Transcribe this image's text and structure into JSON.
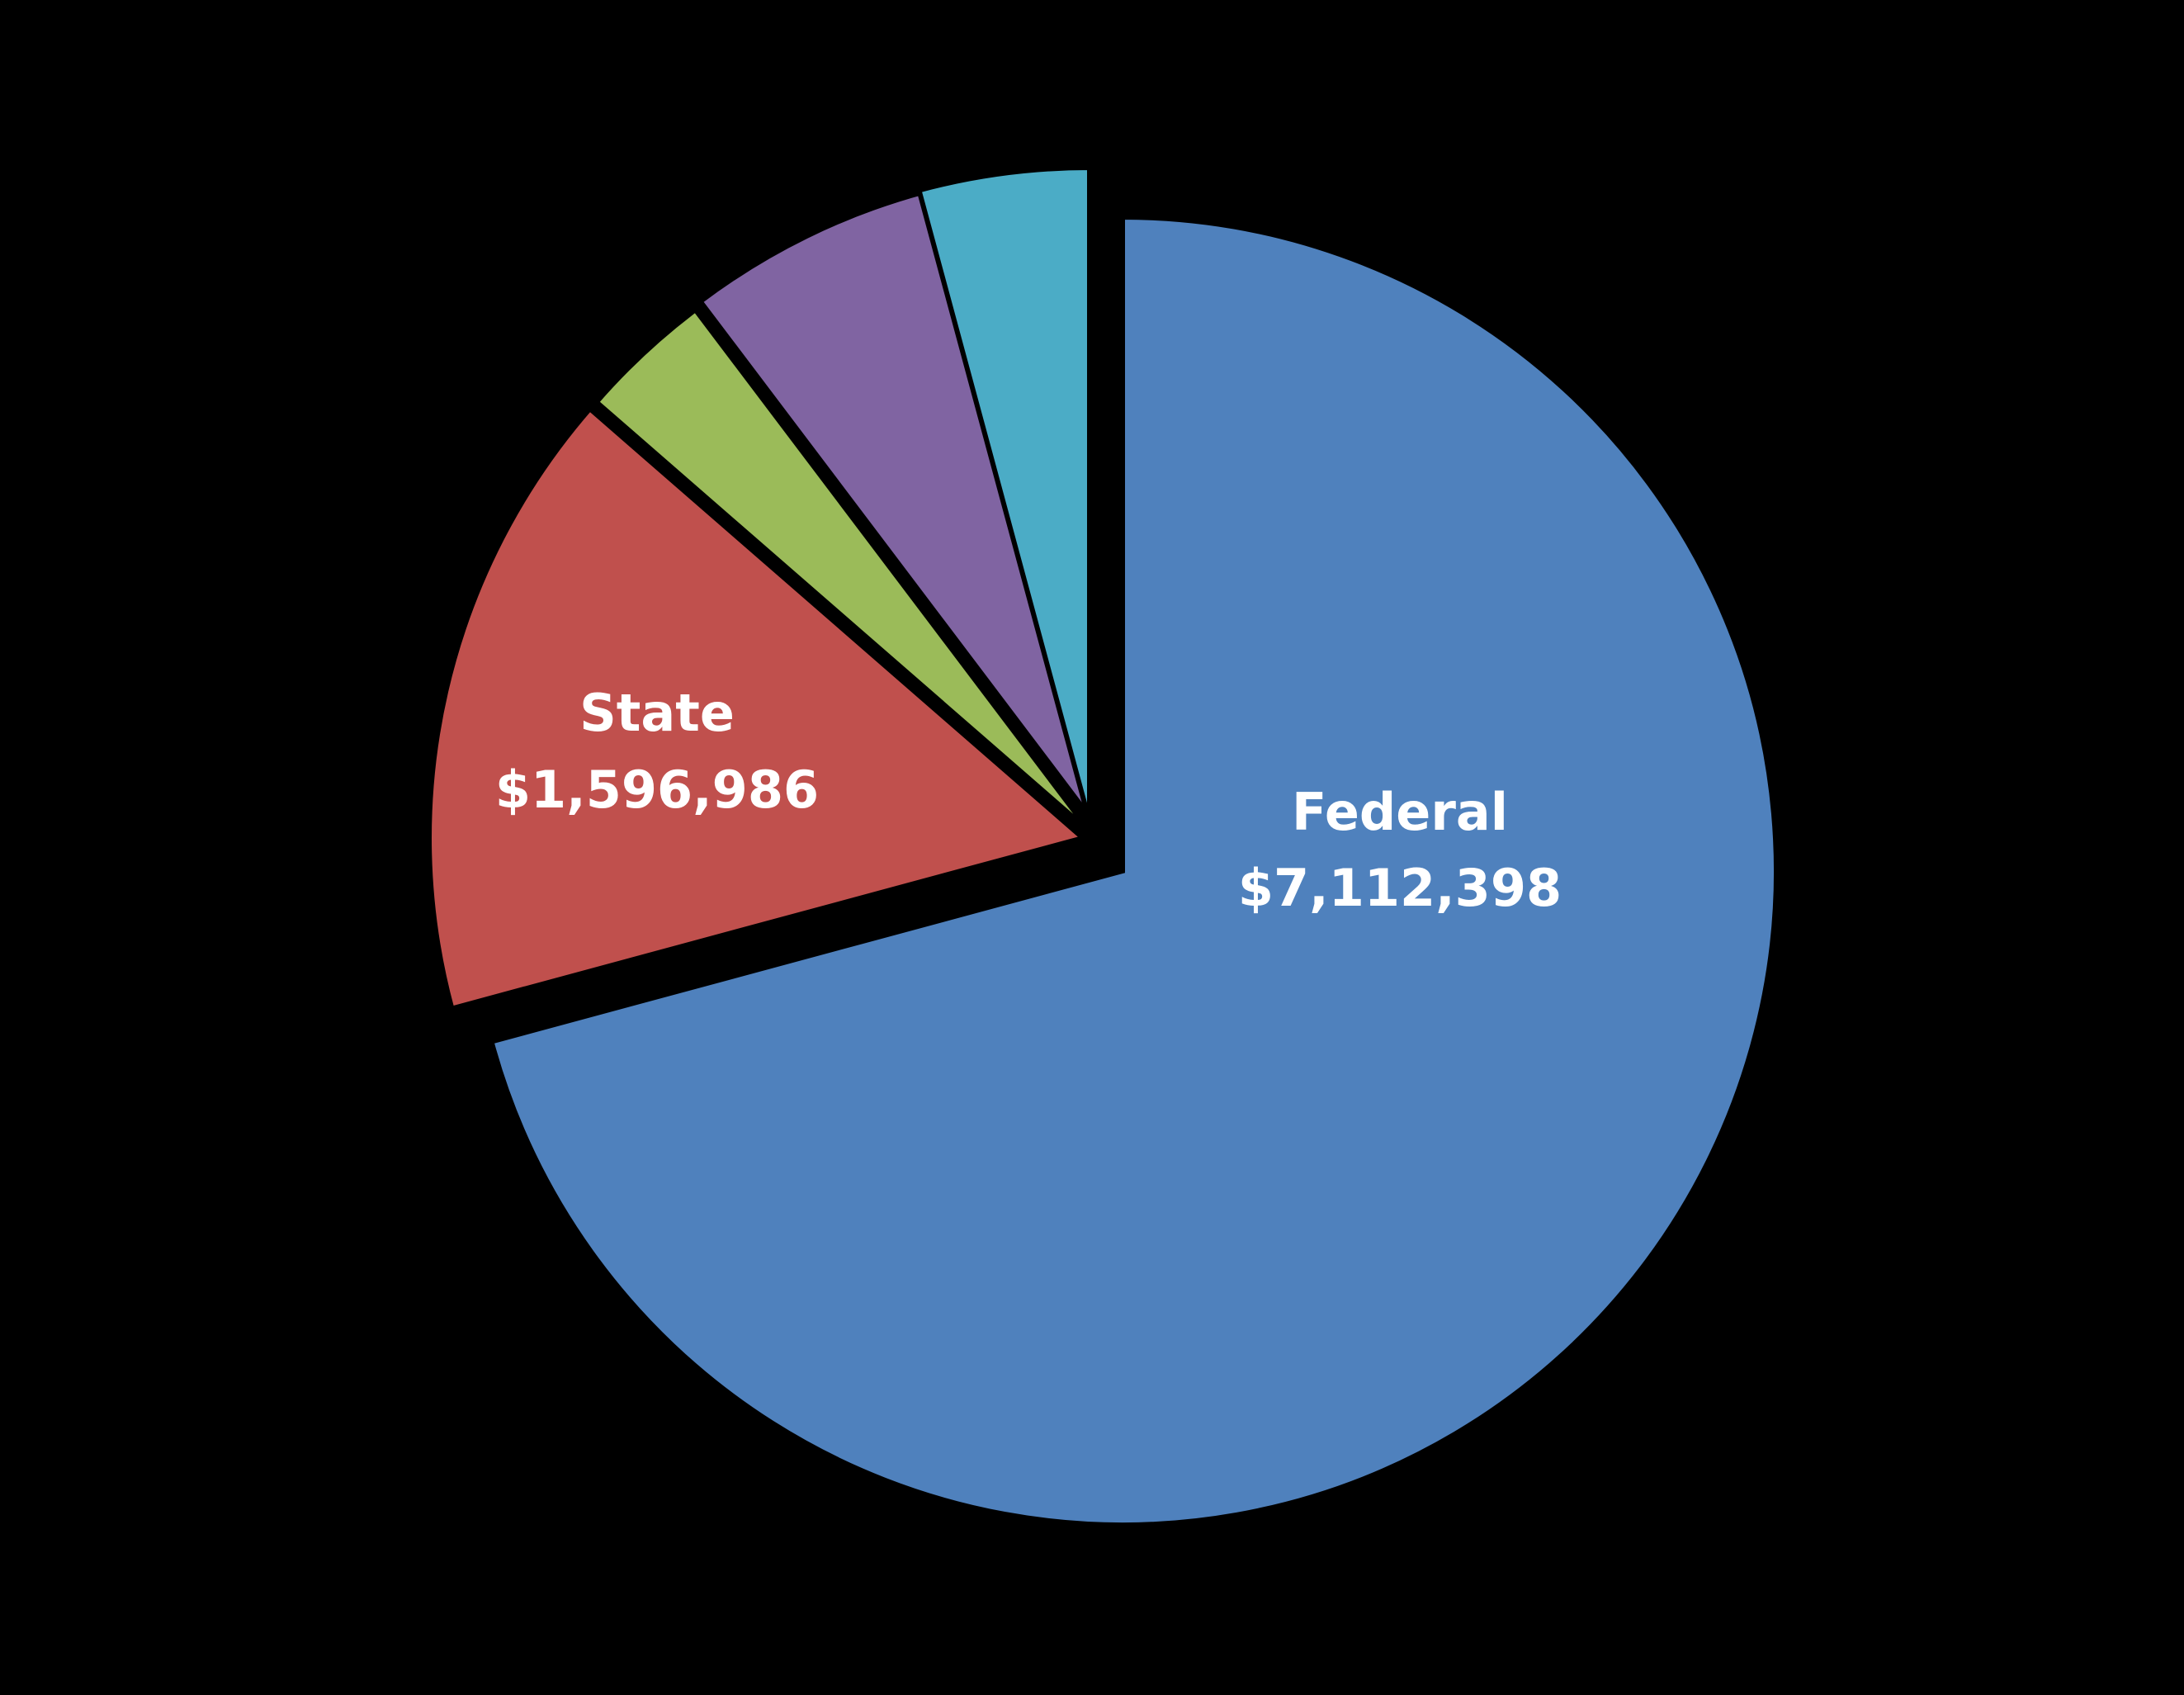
{
  "background": "#000000",
  "chart_data": {
    "type": "pie",
    "title": "",
    "start_angle_deg": 0,
    "direction": "clockwise",
    "exploded": true,
    "center": [
      1360,
      1055
    ],
    "radius": 792,
    "slices": [
      {
        "name": "Federal",
        "value": 7112398,
        "value_label": "$7,112,398",
        "color": "#4F81BD",
        "labeled": true,
        "est_share": 0.708,
        "explode": [
          0,
          0
        ],
        "label_pos": [
          1696,
          990
        ]
      },
      {
        "name": "State",
        "value": 1596986,
        "value_label": "$1,596,986",
        "color": "#C0504D",
        "labeled": true,
        "est_share": 0.156,
        "explode": [
          -48,
          -40
        ],
        "label_pos": [
          796,
          885
        ]
      },
      {
        "name": "",
        "value": null,
        "value_label": "",
        "color": "#9BBB59",
        "labeled": false,
        "est_share": 0.033,
        "explode": [
          -40,
          -48
        ]
      },
      {
        "name": "",
        "value": null,
        "value_label": "",
        "color": "#8064A2",
        "labeled": false,
        "est_share": 0.061,
        "explode": [
          -34,
          -58
        ]
      },
      {
        "name": "",
        "value": null,
        "value_label": "",
        "color": "#4BACC6",
        "labeled": false,
        "est_share": 0.042,
        "explode": [
          -40,
          -60
        ]
      }
    ],
    "legend": null,
    "slice_separator_color": "#000000"
  },
  "labels": {
    "federal_name": "Federal",
    "federal_value": "$7,112,398",
    "state_name": "State",
    "state_value": "$1,596,986"
  }
}
